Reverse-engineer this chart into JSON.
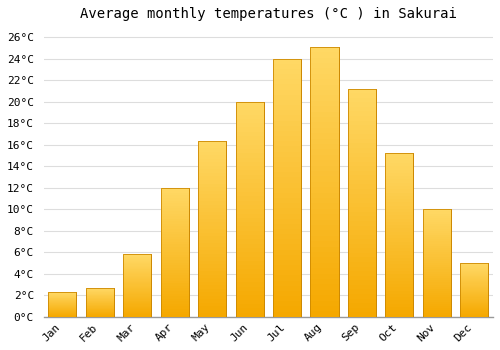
{
  "title": "Average monthly temperatures (°C ) in Sakurai",
  "months": [
    "Jan",
    "Feb",
    "Mar",
    "Apr",
    "May",
    "Jun",
    "Jul",
    "Aug",
    "Sep",
    "Oct",
    "Nov",
    "Dec"
  ],
  "values": [
    2.3,
    2.7,
    5.8,
    12.0,
    16.3,
    20.0,
    24.0,
    25.1,
    21.2,
    15.2,
    10.0,
    5.0
  ],
  "bar_color_bottom": "#F5A800",
  "bar_color_top": "#FFD966",
  "bar_edge_color": "#CC8800",
  "background_color": "#FFFFFF",
  "plot_bg_color": "#FFFFFF",
  "grid_color": "#DDDDDD",
  "ylim": [
    0,
    27
  ],
  "yticks": [
    0,
    2,
    4,
    6,
    8,
    10,
    12,
    14,
    16,
    18,
    20,
    22,
    24,
    26
  ],
  "title_fontsize": 10,
  "tick_fontsize": 8,
  "font_family": "monospace",
  "bar_width": 0.75
}
